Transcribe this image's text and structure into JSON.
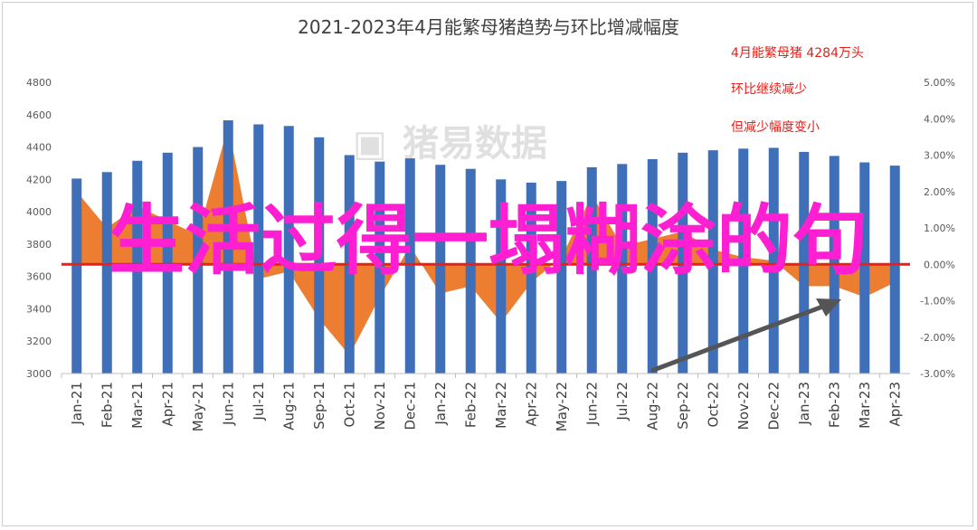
{
  "chart_data": {
    "type": "bar",
    "title": "2021-2023年4月能繁母猪趋势与环比增减幅度",
    "categories": [
      "Jan-21",
      "Feb-21",
      "Mar-21",
      "Apr-21",
      "May-21",
      "Jun-21",
      "Jul-21",
      "Aug-21",
      "Sep-21",
      "Oct-21",
      "Nov-21",
      "Dec-21",
      "Jan-22",
      "Feb-22",
      "Mar-22",
      "Apr-22",
      "May-22",
      "Jun-22",
      "Jul-22",
      "Aug-22",
      "Sep-22",
      "Oct-22",
      "Nov-22",
      "Dec-22",
      "Jan-23",
      "Feb-23",
      "Mar-23",
      "Apr-23"
    ],
    "series": [
      {
        "type": "bar",
        "color": "#3f6fb8",
        "values": [
          4205,
          4245,
          4315,
          4365,
          4400,
          4565,
          4540,
          4530,
          4460,
          4350,
          4310,
          4330,
          4290,
          4265,
          4200,
          4180,
          4190,
          4275,
          4295,
          4325,
          4365,
          4380,
          4390,
          4395,
          4370,
          4345,
          4305,
          4285
        ]
      },
      {
        "type": "area",
        "color": "#ed7d31",
        "axis": "right",
        "values": [
          2.0,
          1.0,
          1.6,
          1.2,
          0.8,
          3.8,
          -0.4,
          -0.2,
          -1.5,
          -2.5,
          -0.9,
          0.5,
          -0.8,
          -0.6,
          -1.6,
          -0.5,
          0.2,
          1.9,
          0.5,
          0.7,
          0.9,
          0.4,
          0.2,
          0.1,
          -0.6,
          -0.6,
          -0.9,
          -0.5
        ]
      }
    ],
    "y_left": {
      "ticks": [
        "4800",
        "4600",
        "4400",
        "4200",
        "4000",
        "3800",
        "3600",
        "3400",
        "3200",
        "3000"
      ],
      "min": 3000,
      "max": 4800
    },
    "y_right": {
      "ticks": [
        "5.00%",
        "4.00%",
        "3.00%",
        "2.00%",
        "1.00%",
        "0.00%",
        "-1.00%",
        "-2.00%",
        "-3.00%"
      ],
      "min": -3,
      "max": 5
    },
    "annotations": [
      "4月能繁母猪 4284万头",
      "环比继续减少",
      "但减少幅度变小"
    ],
    "reference_line_color": "#e8201a"
  },
  "watermark": "猪易数据",
  "overlay_text": "生活过得一塌糊涂的句"
}
